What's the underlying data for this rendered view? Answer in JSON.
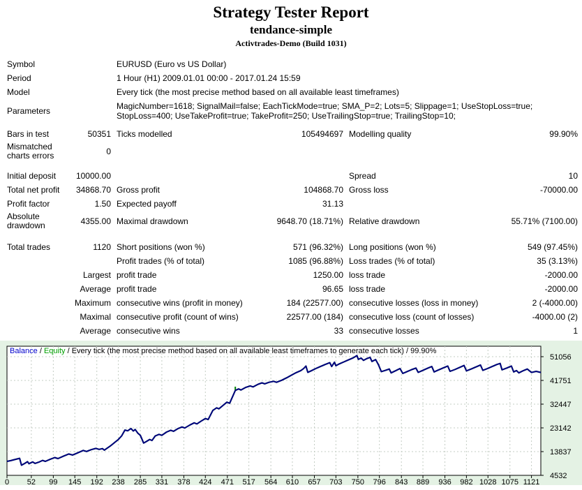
{
  "header": {
    "title": "Strategy Tester Report",
    "subtitle": "tendance-simple",
    "broker": "Activtrades-Demo (Build 1031)"
  },
  "report": {
    "rows": [
      {
        "c1": "Symbol",
        "c2": "",
        "c3": "EURUSD (Euro vs US Dollar)",
        "c4": "",
        "c5": "",
        "c6": "",
        "wide": true,
        "cls": ""
      },
      {
        "c1": "Period",
        "c2": "",
        "c3": "1 Hour (H1) 2009.01.01 00:00 - 2017.01.24 15:59",
        "c4": "",
        "c5": "",
        "c6": "",
        "wide": true,
        "cls": ""
      },
      {
        "c1": "Model",
        "c2": "",
        "c3": "Every tick (the most precise method based on all available least timeframes)",
        "c4": "",
        "c5": "",
        "c6": "",
        "wide": true,
        "cls": ""
      },
      {
        "c1": "Parameters",
        "c2": "",
        "c3": "MagicNumber=1618; SignalMail=false; EachTickMode=true; SMA_P=2; Lots=5; Slippage=1; UseStopLoss=true; StopLoss=400; UseTakeProfit=true; TakeProfit=250; UseTrailingStop=true; TrailingStop=10;",
        "c4": "",
        "c5": "",
        "c6": "",
        "wide": true,
        "cls": "h34 pr"
      },
      {
        "c1": "Bars in test",
        "c2": "50351",
        "c3": "Ticks modelled",
        "c4": "105494697",
        "c5": "Modelling quality",
        "c6": "99.90%",
        "wide": false,
        "cls": "g6"
      },
      {
        "c1": "Mismatched charts errors",
        "c2": "0",
        "c3": "",
        "c4": "",
        "c5": "",
        "c6": "",
        "wide": false,
        "cls": "h30"
      },
      {
        "c1": "Initial deposit",
        "c2": "10000.00",
        "c3": "",
        "c4": "",
        "c5": "Spread",
        "c6": "10",
        "wide": false,
        "cls": "g10"
      },
      {
        "c1": "Total net profit",
        "c2": "34868.70",
        "c3": "Gross profit",
        "c4": "104868.70",
        "c5": "Gross loss",
        "c6": "-70000.00",
        "wide": false,
        "cls": ""
      },
      {
        "c1": "Profit factor",
        "c2": "1.50",
        "c3": "Expected payoff",
        "c4": "31.13",
        "c5": "",
        "c6": "",
        "wide": false,
        "cls": ""
      },
      {
        "c1": "Absolute drawdown",
        "c2": "4355.00",
        "c3": "Maximal drawdown",
        "c4": "9648.70 (18.71%)",
        "c5": "Relative drawdown",
        "c6": "55.71% (7100.00)",
        "wide": false,
        "cls": "h30"
      },
      {
        "c1": "Total trades",
        "c2": "1120",
        "c3": "Short positions (won %)",
        "c4": "571 (96.32%)",
        "c5": "Long positions (won %)",
        "c6": "549 (97.45%)",
        "wide": false,
        "cls": "g12"
      },
      {
        "c1": "",
        "c2": "",
        "c3": "Profit trades (% of total)",
        "c4": "1085 (96.88%)",
        "c5": "Loss trades (% of total)",
        "c6": "35 (3.13%)",
        "wide": false,
        "cls": ""
      },
      {
        "c1": "",
        "c2": "Largest",
        "c3": "profit trade",
        "c4": "1250.00",
        "c5": "loss trade",
        "c6": "-2000.00",
        "wide": false,
        "cls": ""
      },
      {
        "c1": "",
        "c2": "Average",
        "c3": "profit trade",
        "c4": "96.65",
        "c5": "loss trade",
        "c6": "-2000.00",
        "wide": false,
        "cls": ""
      },
      {
        "c1": "",
        "c2": "Maximum",
        "c3": "consecutive wins (profit in money)",
        "c4": "184 (22577.00)",
        "c5": "consecutive losses (loss in money)",
        "c6": "2 (-4000.00)",
        "wide": false,
        "cls": ""
      },
      {
        "c1": "",
        "c2": "Maximal",
        "c3": "consecutive profit (count of wins)",
        "c4": "22577.00 (184)",
        "c5": "consecutive loss (count of losses)",
        "c6": "-4000.00 (2)",
        "wide": false,
        "cls": ""
      },
      {
        "c1": "",
        "c2": "Average",
        "c3": "consecutive wins",
        "c4": "33",
        "c5": "consecutive losses",
        "c6": "1",
        "wide": false,
        "cls": ""
      }
    ]
  },
  "chart_data": {
    "type": "line",
    "legend": {
      "balance_label": "Balance",
      "sep1": " / ",
      "equity_label": "Equity",
      "sep2": " / ",
      "description": "Every tick (the most precise method based on all available least timeframes to generate each tick) / 99.90%"
    },
    "colors": {
      "balance": "#000080",
      "equity": "#008000",
      "balance_legend": "#0000CC",
      "equity_legend": "#00A000",
      "grid": "#C3CCC3",
      "plot_bg": "#FFFFFF",
      "chart_bg": "#E4F2E4",
      "border": "#000000"
    },
    "x_ticks": [
      0,
      52,
      99,
      145,
      192,
      238,
      285,
      331,
      378,
      424,
      471,
      517,
      564,
      610,
      657,
      703,
      750,
      796,
      843,
      889,
      936,
      982,
      1028,
      1075,
      1121
    ],
    "y_ticks": [
      51056,
      41751,
      32447,
      23142,
      13837,
      4532
    ],
    "x_max": 1141,
    "y_axis_range": [
      4532,
      51056
    ],
    "series": [
      {
        "name": "Balance",
        "points": [
          [
            0,
            10000
          ],
          [
            8,
            10300
          ],
          [
            18,
            10800
          ],
          [
            27,
            11200
          ],
          [
            31,
            8500
          ],
          [
            38,
            9200
          ],
          [
            44,
            9900
          ],
          [
            47,
            9100
          ],
          [
            55,
            9800
          ],
          [
            60,
            9200
          ],
          [
            68,
            9700
          ],
          [
            76,
            10400
          ],
          [
            82,
            10000
          ],
          [
            92,
            10800
          ],
          [
            102,
            11500
          ],
          [
            109,
            11100
          ],
          [
            120,
            12000
          ],
          [
            132,
            12900
          ],
          [
            140,
            12500
          ],
          [
            152,
            13400
          ],
          [
            163,
            14300
          ],
          [
            170,
            13900
          ],
          [
            180,
            14600
          ],
          [
            190,
            15100
          ],
          [
            197,
            14700
          ],
          [
            204,
            15000
          ],
          [
            208,
            14400
          ],
          [
            215,
            15300
          ],
          [
            222,
            16200
          ],
          [
            230,
            17400
          ],
          [
            238,
            18600
          ],
          [
            245,
            20000
          ],
          [
            252,
            22300
          ],
          [
            258,
            22000
          ],
          [
            265,
            22900
          ],
          [
            270,
            21900
          ],
          [
            274,
            22500
          ],
          [
            280,
            21000
          ],
          [
            285,
            20200
          ],
          [
            292,
            17200
          ],
          [
            298,
            17800
          ],
          [
            305,
            18600
          ],
          [
            310,
            18200
          ],
          [
            317,
            20000
          ],
          [
            325,
            20600
          ],
          [
            331,
            20200
          ],
          [
            341,
            21500
          ],
          [
            350,
            22200
          ],
          [
            356,
            21800
          ],
          [
            365,
            22800
          ],
          [
            374,
            23500
          ],
          [
            380,
            23100
          ],
          [
            391,
            24300
          ],
          [
            400,
            25100
          ],
          [
            406,
            24700
          ],
          [
            415,
            25800
          ],
          [
            424,
            26800
          ],
          [
            430,
            26400
          ],
          [
            440,
            30000
          ],
          [
            448,
            31000
          ],
          [
            453,
            30600
          ],
          [
            462,
            32000
          ],
          [
            470,
            33200
          ],
          [
            476,
            32800
          ],
          [
            488,
            37800
          ],
          [
            495,
            38400
          ],
          [
            500,
            38000
          ],
          [
            510,
            39000
          ],
          [
            520,
            39600
          ],
          [
            526,
            39200
          ],
          [
            536,
            40200
          ],
          [
            545,
            40800
          ],
          [
            551,
            40400
          ],
          [
            560,
            41000
          ],
          [
            570,
            41400
          ],
          [
            576,
            41000
          ],
          [
            587,
            41800
          ],
          [
            598,
            42800
          ],
          [
            608,
            43800
          ],
          [
            618,
            44800
          ],
          [
            628,
            45600
          ],
          [
            634,
            46400
          ],
          [
            639,
            47400
          ],
          [
            643,
            44900
          ],
          [
            650,
            45500
          ],
          [
            660,
            46400
          ],
          [
            670,
            47200
          ],
          [
            680,
            48000
          ],
          [
            690,
            48700
          ],
          [
            694,
            47200
          ],
          [
            700,
            48900
          ],
          [
            703,
            47500
          ],
          [
            710,
            48200
          ],
          [
            720,
            49000
          ],
          [
            730,
            49800
          ],
          [
            740,
            50600
          ],
          [
            748,
            51500
          ],
          [
            751,
            50000
          ],
          [
            757,
            50500
          ],
          [
            762,
            49600
          ],
          [
            768,
            50200
          ],
          [
            776,
            50800
          ],
          [
            780,
            49200
          ],
          [
            788,
            49900
          ],
          [
            794,
            47900
          ],
          [
            800,
            45200
          ],
          [
            809,
            45700
          ],
          [
            817,
            46200
          ],
          [
            821,
            44700
          ],
          [
            830,
            45500
          ],
          [
            840,
            46400
          ],
          [
            846,
            44500
          ],
          [
            855,
            45200
          ],
          [
            865,
            46000
          ],
          [
            874,
            46600
          ],
          [
            879,
            44900
          ],
          [
            889,
            45700
          ],
          [
            899,
            46500
          ],
          [
            908,
            47200
          ],
          [
            913,
            45100
          ],
          [
            923,
            45900
          ],
          [
            933,
            46700
          ],
          [
            942,
            47400
          ],
          [
            947,
            45300
          ],
          [
            957,
            46000
          ],
          [
            967,
            46800
          ],
          [
            977,
            47600
          ],
          [
            982,
            45500
          ],
          [
            992,
            46200
          ],
          [
            1002,
            47000
          ],
          [
            1012,
            47800
          ],
          [
            1017,
            45700
          ],
          [
            1027,
            46400
          ],
          [
            1037,
            47200
          ],
          [
            1047,
            48000
          ],
          [
            1054,
            48400
          ],
          [
            1058,
            45900
          ],
          [
            1068,
            46600
          ],
          [
            1078,
            47400
          ],
          [
            1083,
            45100
          ],
          [
            1089,
            45600
          ],
          [
            1094,
            44700
          ],
          [
            1104,
            45600
          ],
          [
            1112,
            46200
          ],
          [
            1121,
            44869
          ],
          [
            1131,
            45300
          ],
          [
            1141,
            44870
          ]
        ]
      },
      {
        "name": "Equity",
        "note": "visually coincides with Balance",
        "spike": {
          "trade": 488,
          "from": 37800,
          "to": 39300
        }
      }
    ]
  }
}
